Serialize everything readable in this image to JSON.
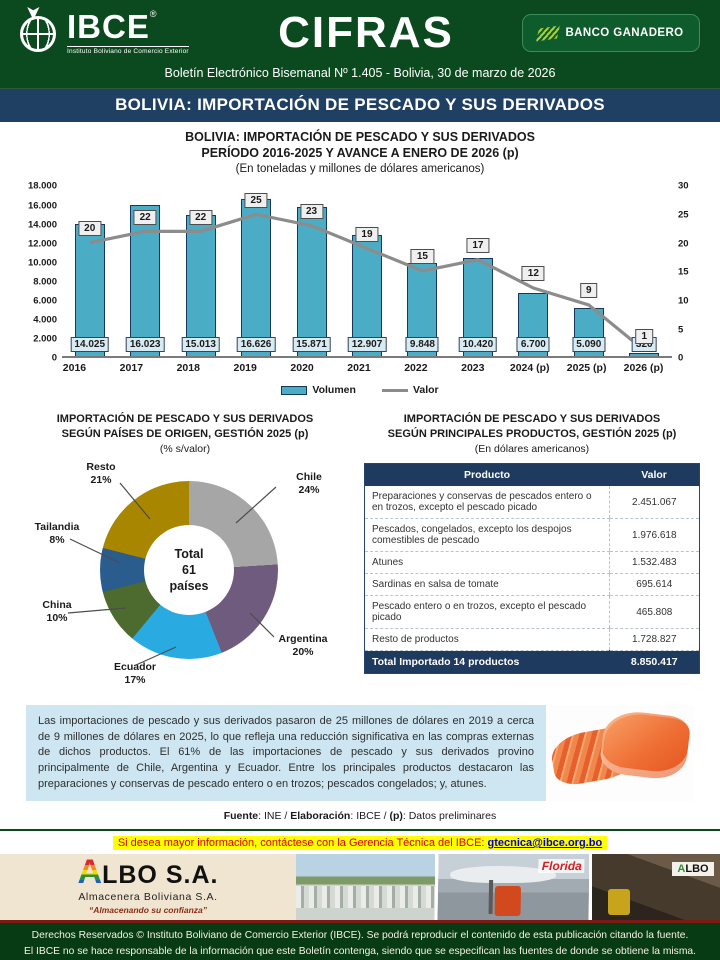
{
  "header": {
    "brand_name": "IBCE",
    "brand_reg": "®",
    "brand_tagline": "Instituto Boliviano de Comercio Exterior",
    "title": "CIFRAS",
    "sponsor": "BANCO GANADERO",
    "bulletin_line": "Boletín Electrónico Bisemanal Nº 1.405 - Bolivia, 30 de marzo de 2026",
    "section_title": "BOLIVIA: IMPORTACIÓN DE PESCADO Y SUS DERIVADOS"
  },
  "main_chart": {
    "title1": "BOLIVIA: IMPORTACIÓN DE PESCADO Y SUS DERIVADOS",
    "title2": "PERÍODO 2016-2025 Y AVANCE A ENERO DE 2026 (p)",
    "subtitle": "(En toneladas y millones de dólares americanos)"
  },
  "pie_section": {
    "title1": "IMPORTACIÓN DE PESCADO Y SUS DERIVADOS",
    "title2": "SEGÚN PAÍSES DE ORIGEN, GESTIÓN 2025 (p)",
    "subtitle": "(% s/valor)"
  },
  "table_section": {
    "title1": "IMPORTACIÓN DE PESCADO Y SUS DERIVADOS",
    "title2": "SEGÚN PRINCIPALES PRODUCTOS, GESTIÓN 2025 (p)",
    "subtitle": "(En dólares americanos)"
  },
  "chart_data": [
    {
      "type": "bar",
      "title": "BOLIVIA: IMPORTACIÓN DE PESCADO Y SUS DERIVADOS PERÍODO 2016-2025 Y AVANCE A ENERO DE 2026 (p)",
      "subtitle": "(En toneladas y millones de dólares americanos)",
      "categories": [
        "2016",
        "2017",
        "2018",
        "2019",
        "2020",
        "2021",
        "2022",
        "2023",
        "2024 (p)",
        "2025 (p)",
        "2026 (p)"
      ],
      "series": [
        {
          "name": "Volumen",
          "type": "bar",
          "axis": "left",
          "values": [
            14025,
            16023,
            15013,
            16626,
            15871,
            12907,
            9848,
            10420,
            6700,
            5090,
            320
          ],
          "labels": [
            "14.025",
            "16.023",
            "15.013",
            "16.626",
            "15.871",
            "12.907",
            "9.848",
            "10.420",
            "6.700",
            "5.090",
            "320"
          ]
        },
        {
          "name": "Valor",
          "type": "line",
          "axis": "right",
          "values": [
            20,
            22,
            22,
            25,
            23,
            19,
            15,
            17,
            12,
            9,
            1
          ],
          "labels": [
            "20",
            "22",
            "22",
            "25",
            "23",
            "19",
            "15",
            "17",
            "12",
            "9",
            "1"
          ]
        }
      ],
      "left_axis": {
        "ticks": [
          "18.000",
          "16.000",
          "14.000",
          "12.000",
          "10.000",
          "8.000",
          "6.000",
          "4.000",
          "2.000",
          "0"
        ],
        "max": 18000
      },
      "right_axis": {
        "ticks": [
          "30",
          "25",
          "20",
          "15",
          "10",
          "5",
          "0"
        ],
        "max": 30
      },
      "legend_position": "bottom",
      "grid": false,
      "colors": {
        "bar": "#4BACC6",
        "bar_border": "#17375E",
        "line": "#8C8C8C"
      }
    },
    {
      "type": "pie",
      "title": "IMPORTACIÓN DE PESCADO Y SUS DERIVADOS SEGÚN PAÍSES DE ORIGEN, GESTIÓN 2025 (p)",
      "subtitle": "(% s/valor)",
      "center_label": [
        "Total",
        "61",
        "países"
      ],
      "slices": [
        {
          "label": "Chile",
          "pct": 24,
          "color": "#A6A6A6"
        },
        {
          "label": "Argentina",
          "pct": 20,
          "color": "#6F5B7E"
        },
        {
          "label": "Ecuador",
          "pct": 17,
          "color": "#29ABE2"
        },
        {
          "label": "China",
          "pct": 10,
          "color": "#4E6B2F"
        },
        {
          "label": "Tailandia",
          "pct": 8,
          "color": "#2B5C8E"
        },
        {
          "label": "Resto",
          "pct": 21,
          "color": "#A98600"
        }
      ]
    },
    {
      "type": "table",
      "title": "IMPORTACIÓN DE PESCADO Y SUS DERIVADOS SEGÚN PRINCIPALES PRODUCTOS, GESTIÓN 2025 (p)",
      "subtitle": "(En dólares americanos)",
      "columns": [
        "Producto",
        "Valor"
      ],
      "rows": [
        {
          "product": "Preparaciones y conservas de pescados entero o en trozos, excepto el pescado picado",
          "value": "2.451.067"
        },
        {
          "product": "Pescados, congelados, excepto los despojos comestibles de pescado",
          "value": "1.976.618"
        },
        {
          "product": "Atunes",
          "value": "1.532.483"
        },
        {
          "product": "Sardinas en salsa de tomate",
          "value": "695.614"
        },
        {
          "product": "Pescado entero o en trozos, excepto el pescado picado",
          "value": "465.808"
        },
        {
          "product": "Resto de productos",
          "value": "1.728.827"
        }
      ],
      "total": {
        "label": "Total Importado 14 productos",
        "value": "8.850.417"
      }
    }
  ],
  "analysis": {
    "text": "Las importaciones de pescado y sus derivados pasaron de 25 millones de dólares en 2019 a cerca de 9 millones de dólares en 2025, lo que refleja una reducción significativa en las compras externas de dichos productos. El 61% de las importaciones de pescado y sus derivados provino principalmente de Chile, Argentina y Ecuador. Entre los principales productos destacaron las preparaciones y conservas de pescado entero o en trozos; pescados congelados; y, atunes."
  },
  "source_line": {
    "fuente_label": "Fuente",
    "fuente_value": ": INE / ",
    "elab_label": "Elaboración",
    "elab_value": ": IBCE / ",
    "p_label": "(p)",
    "p_value": ": Datos preliminares"
  },
  "contact": {
    "prefix": "Si desea mayor información, contáctese con la Gerencia Técnica del IBCE: ",
    "email": "gtecnica@ibce.org.bo"
  },
  "ad": {
    "logo_a": "A",
    "logo_rest": "LBO S.A.",
    "subtitle": "Almacenera Boliviana S.A.",
    "tagline": "“Almacenando su confianza”",
    "florida_sign": "Florida",
    "albo_sign_a": "A",
    "albo_sign_rest": "LBO"
  },
  "footer": {
    "line1": "Derechos Reservados © Instituto Boliviano de Comercio Exterior (IBCE). Se podrá reproducir el contenido de esta publicación citando la fuente.",
    "line2": "El IBCE no se hace responsable de la información que este Boletín contenga, siendo que se especifican las fuentes de donde se obtiene la misma."
  }
}
